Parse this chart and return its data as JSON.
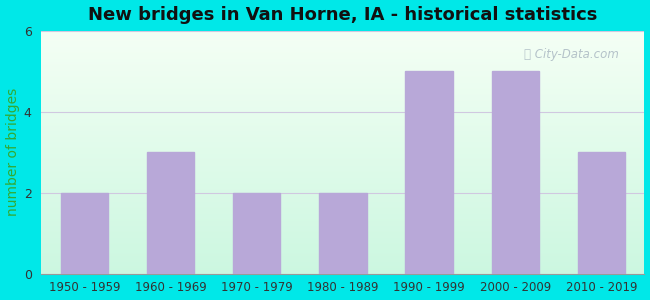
{
  "categories": [
    "1950 - 1959",
    "1960 - 1969",
    "1970 - 1979",
    "1980 - 1989",
    "1990 - 1999",
    "2000 - 2009",
    "2010 - 2019"
  ],
  "values": [
    2,
    3,
    2,
    2,
    5,
    5,
    3
  ],
  "bar_color": "#b8a8d8",
  "bar_edgecolor": "#b8a8d8",
  "title": "New bridges in Van Horne, IA - historical statistics",
  "ylabel": "number of bridges",
  "ylim": [
    0,
    6
  ],
  "yticks": [
    0,
    2,
    4,
    6
  ],
  "figure_bg": "#00e8e8",
  "grid_color": "#d0c8e0",
  "title_fontsize": 13,
  "axis_label_fontsize": 10,
  "tick_fontsize": 8.5,
  "watermark_text": "City-Data.com",
  "ylabel_color": "#33aa33",
  "tick_color": "#333333",
  "title_color": "#111111"
}
